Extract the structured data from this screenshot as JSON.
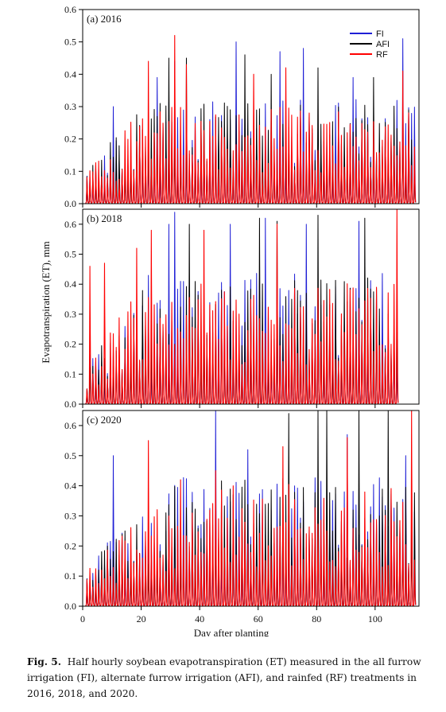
{
  "chart_data": {
    "type": "line",
    "xlabel": "Day after planting",
    "ylabel": "Evapotranspiration (ET), mm",
    "xlim": [
      0,
      115
    ],
    "xticks": [
      0,
      20,
      40,
      60,
      80,
      100
    ],
    "legend": {
      "placement": "top-right of panel (a)",
      "entries": [
        {
          "name": "FI",
          "color": "#1f1fd6"
        },
        {
          "name": "AFI",
          "color": "#000000"
        },
        {
          "name": "RF",
          "color": "#ff0000"
        }
      ]
    },
    "panels": [
      {
        "label": "(a) 2016",
        "ylim": [
          0,
          0.6
        ],
        "yticks": [
          "0.0",
          "0.1",
          "0.2",
          "0.3",
          "0.4",
          "0.5",
          "0.6"
        ],
        "day_range": [
          1,
          113
        ],
        "series": [
          {
            "name": "FI",
            "daily_peaks": [
              {
                "day": 10,
                "value": 0.3
              },
              {
                "day": 25,
                "value": 0.39
              },
              {
                "day": 31,
                "value": 0.44
              },
              {
                "day": 52,
                "value": 0.5
              },
              {
                "day": 67,
                "value": 0.47
              },
              {
                "day": 75,
                "value": 0.48
              },
              {
                "day": 92,
                "value": 0.39
              },
              {
                "day": 109,
                "value": 0.51
              }
            ]
          },
          {
            "name": "AFI",
            "daily_peaks": [
              {
                "day": 29,
                "value": 0.45
              },
              {
                "day": 35,
                "value": 0.45
              },
              {
                "day": 55,
                "value": 0.46
              },
              {
                "day": 64,
                "value": 0.4
              },
              {
                "day": 80,
                "value": 0.42
              },
              {
                "day": 99,
                "value": 0.39
              }
            ]
          },
          {
            "name": "RF",
            "daily_peaks": [
              {
                "day": 22,
                "value": 0.44
              },
              {
                "day": 31,
                "value": 0.52
              },
              {
                "day": 35,
                "value": 0.43
              },
              {
                "day": 58,
                "value": 0.4
              },
              {
                "day": 69,
                "value": 0.42
              },
              {
                "day": 109,
                "value": 0.41
              }
            ]
          }
        ]
      },
      {
        "label": "(b) 2018",
        "ylim": [
          0,
          0.65
        ],
        "yticks": [
          "0.0",
          "0.1",
          "0.2",
          "0.3",
          "0.4",
          "0.5",
          "0.6"
        ],
        "day_range": [
          1,
          107
        ],
        "series": [
          {
            "name": "FI",
            "daily_peaks": [
              {
                "day": 29,
                "value": 0.6
              },
              {
                "day": 31,
                "value": 0.64
              },
              {
                "day": 50,
                "value": 0.6
              },
              {
                "day": 62,
                "value": 0.62
              },
              {
                "day": 76,
                "value": 0.6
              },
              {
                "day": 94,
                "value": 0.61
              }
            ]
          },
          {
            "name": "AFI",
            "daily_peaks": [
              {
                "day": 36,
                "value": 0.6
              },
              {
                "day": 60,
                "value": 0.62
              },
              {
                "day": 66,
                "value": 0.61
              },
              {
                "day": 80,
                "value": 0.63
              },
              {
                "day": 96,
                "value": 0.62
              }
            ]
          },
          {
            "name": "RF",
            "daily_peaks": [
              {
                "day": 2,
                "value": 0.46
              },
              {
                "day": 7,
                "value": 0.47
              },
              {
                "day": 18,
                "value": 0.52
              },
              {
                "day": 23,
                "value": 0.58
              },
              {
                "day": 41,
                "value": 0.58
              },
              {
                "day": 66,
                "value": 0.6
              },
              {
                "day": 107,
                "value": 0.65
              }
            ]
          }
        ]
      },
      {
        "label": "(c) 2020",
        "ylim": [
          0,
          0.65
        ],
        "yticks": [
          "0.0",
          "0.1",
          "0.2",
          "0.3",
          "0.4",
          "0.5",
          "0.6"
        ],
        "day_range": [
          1,
          113
        ],
        "series": [
          {
            "name": "FI",
            "daily_peaks": [
              {
                "day": 10,
                "value": 0.5
              },
              {
                "day": 45,
                "value": 0.65
              },
              {
                "day": 56,
                "value": 0.52
              },
              {
                "day": 90,
                "value": 0.57
              },
              {
                "day": 110,
                "value": 0.5
              }
            ]
          },
          {
            "name": "AFI",
            "daily_peaks": [
              {
                "day": 70,
                "value": 0.64
              },
              {
                "day": 80,
                "value": 0.65
              },
              {
                "day": 83,
                "value": 0.65
              },
              {
                "day": 94,
                "value": 0.65
              },
              {
                "day": 104,
                "value": 0.65
              }
            ]
          },
          {
            "name": "RF",
            "daily_peaks": [
              {
                "day": 22,
                "value": 0.55
              },
              {
                "day": 33,
                "value": 0.42
              },
              {
                "day": 45,
                "value": 0.45
              },
              {
                "day": 68,
                "value": 0.53
              },
              {
                "day": 90,
                "value": 0.56
              },
              {
                "day": 112,
                "value": 0.65
              }
            ]
          }
        ]
      }
    ]
  },
  "caption": {
    "figure_number": "Fig. 5.",
    "text": "Half hourly soybean evapotranspiration (ET) measured in the all furrow irrigation (FI), alternate furrow irrigation (AFI), and rainfed (RF) treatments in 2016, 2018, and 2020."
  }
}
